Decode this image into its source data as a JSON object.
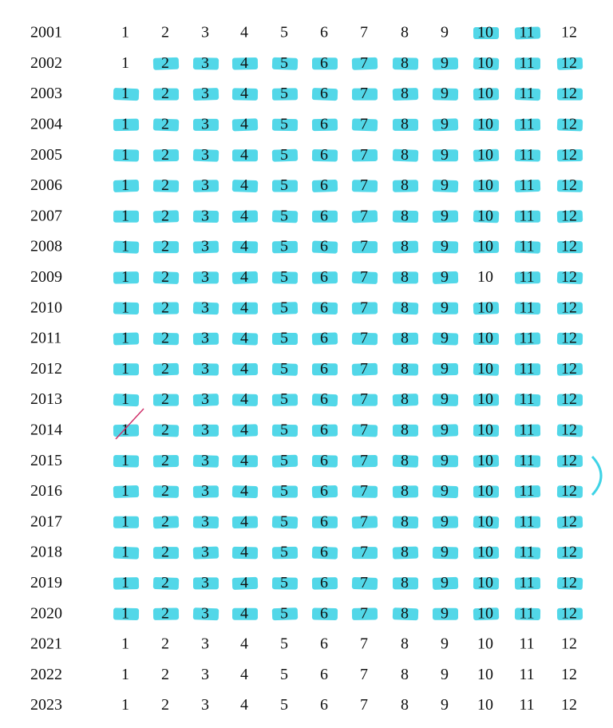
{
  "rows": [
    {
      "year": "2001",
      "months": [
        1,
        2,
        3,
        4,
        5,
        6,
        7,
        8,
        9,
        10,
        11,
        12
      ],
      "highlighted": [
        false,
        false,
        false,
        false,
        false,
        false,
        false,
        false,
        false,
        true,
        true,
        false
      ]
    },
    {
      "year": "2002",
      "months": [
        1,
        2,
        3,
        4,
        5,
        6,
        7,
        8,
        9,
        10,
        11,
        12
      ],
      "highlighted": [
        false,
        true,
        true,
        true,
        true,
        true,
        true,
        true,
        true,
        true,
        true,
        true
      ]
    },
    {
      "year": "2003",
      "months": [
        1,
        2,
        3,
        4,
        5,
        6,
        7,
        8,
        9,
        10,
        11,
        12
      ],
      "highlighted": [
        true,
        true,
        true,
        true,
        true,
        true,
        true,
        true,
        true,
        true,
        true,
        true
      ]
    },
    {
      "year": "2004",
      "months": [
        1,
        2,
        3,
        4,
        5,
        6,
        7,
        8,
        9,
        10,
        11,
        12
      ],
      "highlighted": [
        true,
        true,
        true,
        true,
        true,
        true,
        true,
        true,
        true,
        true,
        true,
        true
      ]
    },
    {
      "year": "2005",
      "months": [
        1,
        2,
        3,
        4,
        5,
        6,
        7,
        8,
        9,
        10,
        11,
        12
      ],
      "highlighted": [
        true,
        true,
        true,
        true,
        true,
        true,
        true,
        true,
        true,
        true,
        true,
        true
      ]
    },
    {
      "year": "2006",
      "months": [
        1,
        2,
        3,
        4,
        5,
        6,
        7,
        8,
        9,
        10,
        11,
        12
      ],
      "highlighted": [
        true,
        true,
        true,
        true,
        true,
        true,
        true,
        true,
        true,
        true,
        true,
        true
      ]
    },
    {
      "year": "2007",
      "months": [
        1,
        2,
        3,
        4,
        5,
        6,
        7,
        8,
        9,
        10,
        11,
        12
      ],
      "highlighted": [
        true,
        true,
        true,
        true,
        true,
        true,
        true,
        true,
        true,
        true,
        true,
        true
      ]
    },
    {
      "year": "2008",
      "months": [
        1,
        2,
        3,
        4,
        5,
        6,
        7,
        8,
        9,
        10,
        11,
        12
      ],
      "highlighted": [
        true,
        true,
        true,
        true,
        true,
        true,
        true,
        true,
        true,
        true,
        true,
        true
      ]
    },
    {
      "year": "2009",
      "months": [
        1,
        2,
        3,
        4,
        5,
        6,
        7,
        8,
        9,
        10,
        11,
        12
      ],
      "highlighted": [
        true,
        true,
        true,
        true,
        true,
        true,
        true,
        true,
        true,
        false,
        true,
        true
      ]
    },
    {
      "year": "2010",
      "months": [
        1,
        2,
        3,
        4,
        5,
        6,
        7,
        8,
        9,
        10,
        11,
        12
      ],
      "highlighted": [
        true,
        true,
        true,
        true,
        true,
        true,
        true,
        true,
        true,
        true,
        true,
        true
      ]
    },
    {
      "year": "2011",
      "months": [
        1,
        2,
        3,
        4,
        5,
        6,
        7,
        8,
        9,
        10,
        11,
        12
      ],
      "highlighted": [
        true,
        true,
        true,
        true,
        true,
        true,
        true,
        true,
        true,
        true,
        true,
        true
      ]
    },
    {
      "year": "2012",
      "months": [
        1,
        2,
        3,
        4,
        5,
        6,
        7,
        8,
        9,
        10,
        11,
        12
      ],
      "highlighted": [
        true,
        true,
        true,
        true,
        true,
        true,
        true,
        true,
        true,
        true,
        true,
        true
      ]
    },
    {
      "year": "2013",
      "months": [
        1,
        2,
        3,
        4,
        5,
        6,
        7,
        8,
        9,
        10,
        11,
        12
      ],
      "highlighted": [
        true,
        true,
        true,
        true,
        true,
        true,
        true,
        true,
        true,
        true,
        true,
        true
      ]
    },
    {
      "year": "2014",
      "months": [
        1,
        2,
        3,
        4,
        5,
        6,
        7,
        8,
        9,
        10,
        11,
        12
      ],
      "highlighted": [
        true,
        true,
        true,
        true,
        true,
        true,
        true,
        true,
        true,
        true,
        true,
        true
      ]
    },
    {
      "year": "2015",
      "months": [
        1,
        2,
        3,
        4,
        5,
        6,
        7,
        8,
        9,
        10,
        11,
        12
      ],
      "highlighted": [
        true,
        true,
        true,
        true,
        true,
        true,
        true,
        true,
        true,
        true,
        true,
        true
      ]
    },
    {
      "year": "2016",
      "months": [
        1,
        2,
        3,
        4,
        5,
        6,
        7,
        8,
        9,
        10,
        11,
        12
      ],
      "highlighted": [
        true,
        true,
        true,
        true,
        true,
        true,
        true,
        true,
        true,
        true,
        true,
        true
      ]
    },
    {
      "year": "2017",
      "months": [
        1,
        2,
        3,
        4,
        5,
        6,
        7,
        8,
        9,
        10,
        11,
        12
      ],
      "highlighted": [
        true,
        true,
        true,
        true,
        true,
        true,
        true,
        true,
        true,
        true,
        true,
        true
      ]
    },
    {
      "year": "2018",
      "months": [
        1,
        2,
        3,
        4,
        5,
        6,
        7,
        8,
        9,
        10,
        11,
        12
      ],
      "highlighted": [
        true,
        true,
        true,
        true,
        true,
        true,
        true,
        true,
        true,
        true,
        true,
        true
      ]
    },
    {
      "year": "2019",
      "months": [
        1,
        2,
        3,
        4,
        5,
        6,
        7,
        8,
        9,
        10,
        11,
        12
      ],
      "highlighted": [
        true,
        true,
        true,
        true,
        true,
        true,
        true,
        true,
        true,
        true,
        true,
        true
      ]
    },
    {
      "year": "2020",
      "months": [
        1,
        2,
        3,
        4,
        5,
        6,
        7,
        8,
        9,
        10,
        11,
        12
      ],
      "highlighted": [
        true,
        true,
        true,
        true,
        true,
        true,
        true,
        true,
        true,
        true,
        true,
        true
      ]
    },
    {
      "year": "2021",
      "months": [
        1,
        2,
        3,
        4,
        5,
        6,
        7,
        8,
        9,
        10,
        11,
        12
      ],
      "highlighted": [
        false,
        false,
        false,
        false,
        false,
        false,
        false,
        false,
        false,
        false,
        false,
        false
      ]
    },
    {
      "year": "2022",
      "months": [
        1,
        2,
        3,
        4,
        5,
        6,
        7,
        8,
        9,
        10,
        11,
        12
      ],
      "highlighted": [
        false,
        false,
        false,
        false,
        false,
        false,
        false,
        false,
        false,
        false,
        false,
        false
      ]
    },
    {
      "year": "2023",
      "months": [
        1,
        2,
        3,
        4,
        5,
        6,
        7,
        8,
        9,
        10,
        11,
        12
      ],
      "highlighted": [
        false,
        false,
        false,
        false,
        false,
        false,
        false,
        false,
        false,
        false,
        false,
        false
      ]
    }
  ],
  "highlight_color": "#3fd3e6"
}
